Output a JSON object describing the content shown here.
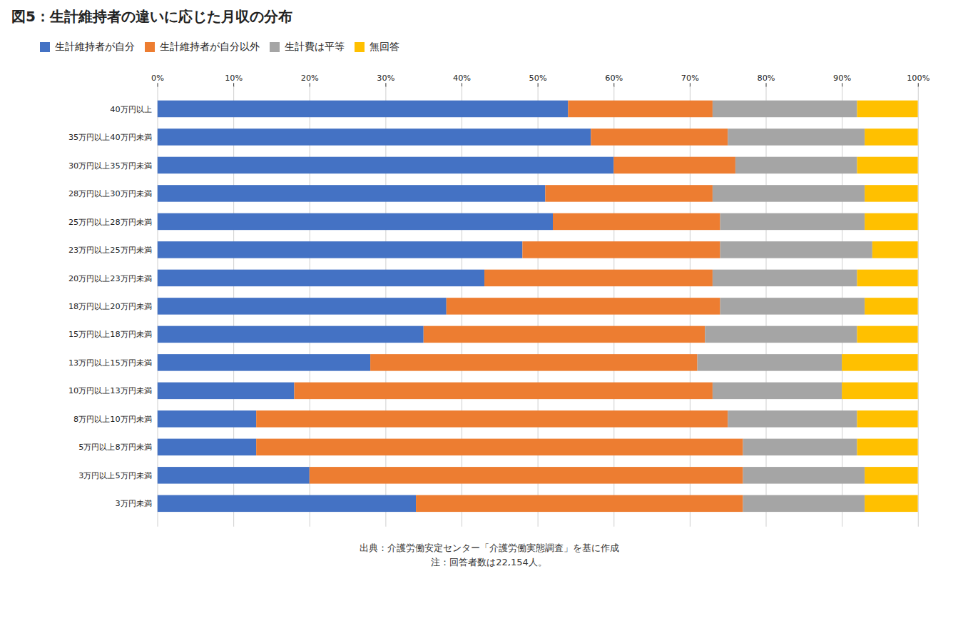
{
  "chart_data": {
    "type": "bar",
    "title": "図5：生計維持者の違いに応じた月収の分布",
    "orientation": "horizontal",
    "stacked": true,
    "grid": true,
    "legend": "upper left",
    "categories": [
      "40万円以上",
      "35万円以上40万円未満",
      "30万円以上35万円未満",
      "28万円以上30万円未満",
      "25万円以上28万円未満",
      "23万円以上25万円未満",
      "20万円以上23万円未満",
      "18万円以上20万円未満",
      "15万円以上18万円未満",
      "13万円以上15万円未満",
      "10万円以上13万円未満",
      "8万円以上10万円未満",
      "5万円以上8万円未満",
      "3万円以上5万円未満",
      "3万円未満"
    ],
    "series": [
      {
        "name": "生計維持者が自分",
        "color": "#4472C4",
        "values": [
          54.0,
          57.0,
          60.0,
          51.0,
          52.0,
          48.0,
          43.0,
          38.0,
          35.0,
          28.0,
          18.0,
          13.0,
          13.0,
          20.0,
          34.0
        ]
      },
      {
        "name": "生計維持者が自分以外",
        "color": "#ED7D31",
        "values": [
          19.0,
          18.0,
          16.0,
          22.0,
          22.0,
          26.0,
          30.0,
          36.0,
          37.0,
          43.0,
          55.0,
          62.0,
          64.0,
          57.0,
          43.0
        ]
      },
      {
        "name": "生計費は平等",
        "color": "#A5A5A5",
        "values": [
          19.0,
          18.0,
          16.0,
          20.0,
          19.0,
          20.0,
          19.0,
          19.0,
          20.0,
          19.0,
          17.0,
          17.0,
          15.0,
          16.0,
          16.0
        ]
      },
      {
        "name": "無回答",
        "color": "#FFC000",
        "values": [
          8.0,
          7.0,
          8.0,
          7.0,
          7.0,
          6.0,
          8.0,
          7.0,
          8.0,
          10.0,
          10.0,
          8.0,
          8.0,
          7.0,
          7.0
        ]
      }
    ],
    "xlim": [
      0,
      100
    ],
    "xticks": [
      {
        "value": 0,
        "label": "0%"
      },
      {
        "value": 10,
        "label": "10%"
      },
      {
        "value": 20,
        "label": "20%"
      },
      {
        "value": 30,
        "label": "30%"
      },
      {
        "value": 40,
        "label": "40%"
      },
      {
        "value": 50,
        "label": "50%"
      },
      {
        "value": 60,
        "label": "60%"
      },
      {
        "value": 70,
        "label": "70%"
      },
      {
        "value": 80,
        "label": "80%"
      },
      {
        "value": 90,
        "label": "90%"
      },
      {
        "value": 100,
        "label": "100%"
      }
    ],
    "annotations": [
      "出典：介護労働安定センター「介護労働実態調査」を基に作成",
      "注：回答者数は22,154人。"
    ]
  }
}
